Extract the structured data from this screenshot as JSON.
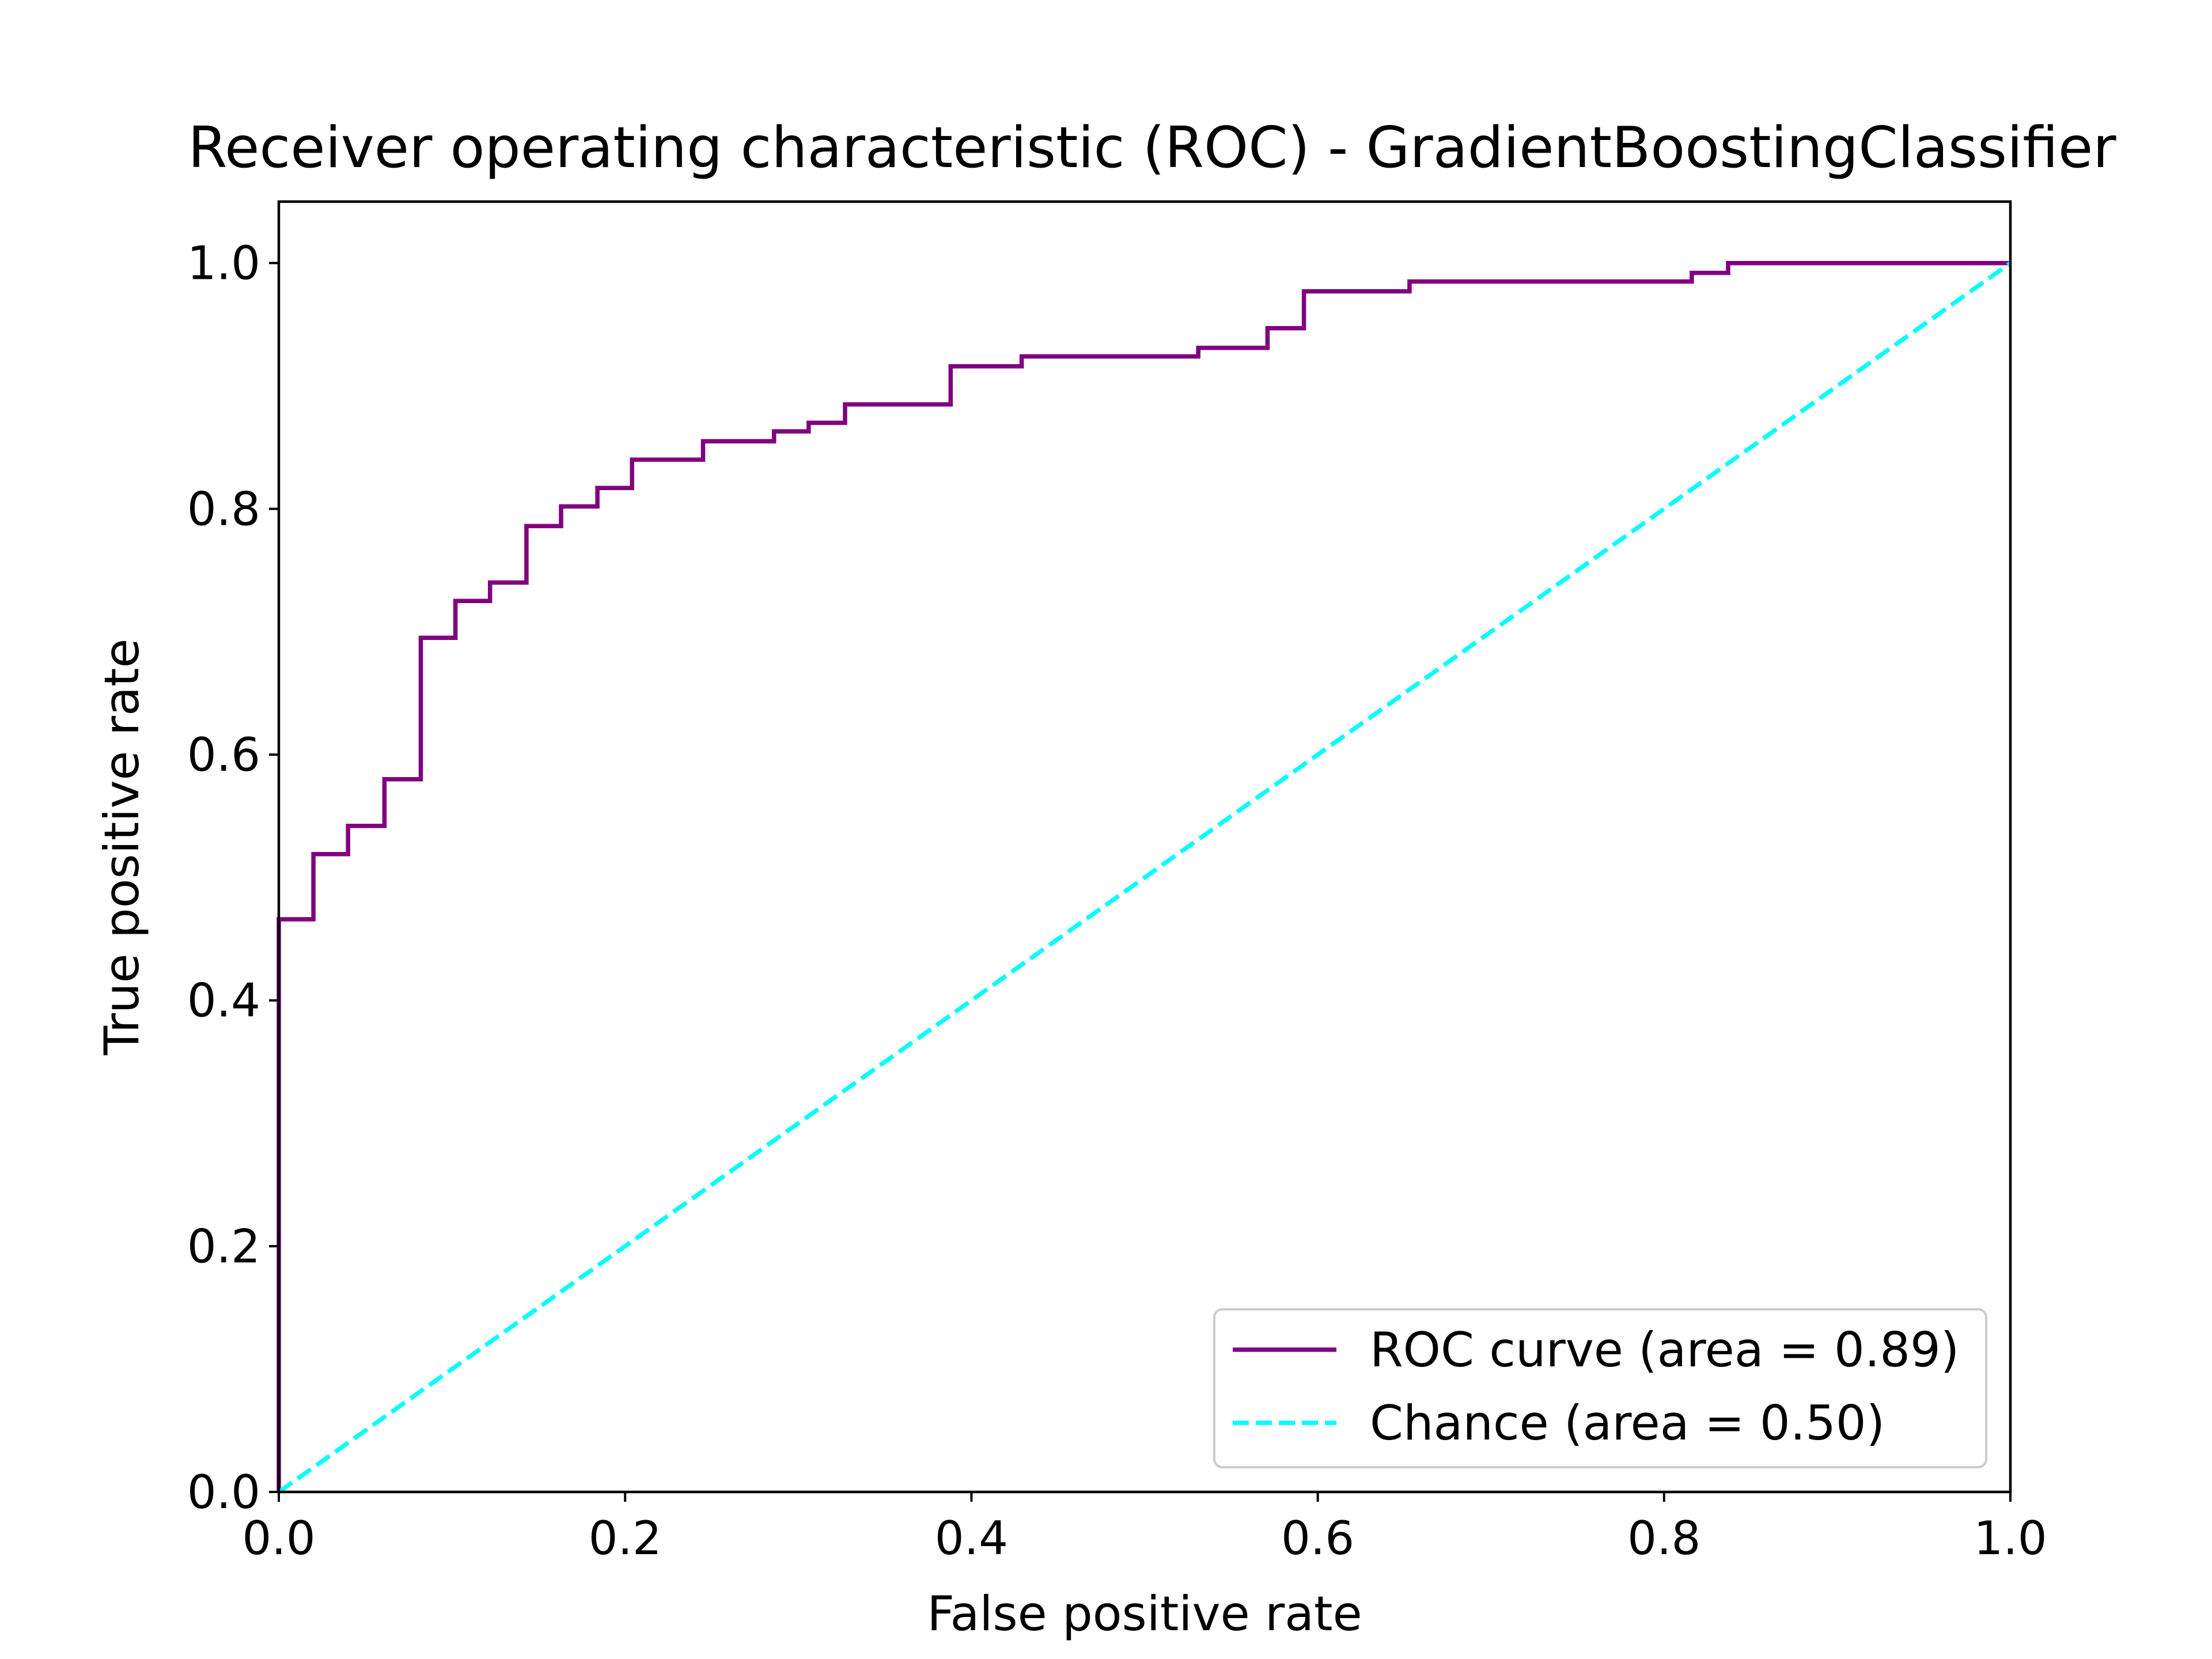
{
  "chart_data": {
    "type": "line",
    "title": "Receiver operating characteristic (ROC) - GradientBoostingClassifier",
    "xlabel": "False positive rate",
    "ylabel": "True positive rate",
    "xlim": [
      0.0,
      1.0
    ],
    "ylim": [
      0.0,
      1.05
    ],
    "grid": false,
    "legend_position": "lower-right",
    "x_ticks": [
      "0.0",
      "0.2",
      "0.4",
      "0.6",
      "0.8",
      "1.0"
    ],
    "y_ticks": [
      "0.0",
      "0.2",
      "0.4",
      "0.6",
      "0.8",
      "1.0"
    ],
    "series": [
      {
        "name": "ROC curve (area = 0.89)",
        "color": "#800080",
        "style": "solid",
        "x": [
          0.0,
          0.0,
          0.02,
          0.02,
          0.04,
          0.04,
          0.061,
          0.061,
          0.082,
          0.082,
          0.102,
          0.102,
          0.122,
          0.122,
          0.143,
          0.143,
          0.163,
          0.163,
          0.184,
          0.184,
          0.204,
          0.204,
          0.245,
          0.245,
          0.286,
          0.286,
          0.306,
          0.306,
          0.327,
          0.327,
          0.388,
          0.388,
          0.429,
          0.429,
          0.531,
          0.531,
          0.571,
          0.571,
          0.592,
          0.592,
          0.653,
          0.653,
          0.816,
          0.816,
          0.837,
          0.837,
          1.0
        ],
        "y": [
          0.0,
          0.466,
          0.466,
          0.519,
          0.519,
          0.542,
          0.542,
          0.58,
          0.58,
          0.695,
          0.695,
          0.725,
          0.725,
          0.74,
          0.74,
          0.786,
          0.786,
          0.802,
          0.802,
          0.817,
          0.817,
          0.84,
          0.84,
          0.855,
          0.855,
          0.863,
          0.863,
          0.87,
          0.87,
          0.885,
          0.885,
          0.916,
          0.916,
          0.924,
          0.924,
          0.931,
          0.931,
          0.947,
          0.947,
          0.977,
          0.977,
          0.985,
          0.985,
          0.992,
          0.992,
          1.0,
          1.0
        ]
      },
      {
        "name": "Chance (area = 0.50)",
        "color": "#00ffff",
        "style": "dashed",
        "x": [
          0.0,
          1.0
        ],
        "y": [
          0.0,
          1.0
        ]
      }
    ]
  }
}
